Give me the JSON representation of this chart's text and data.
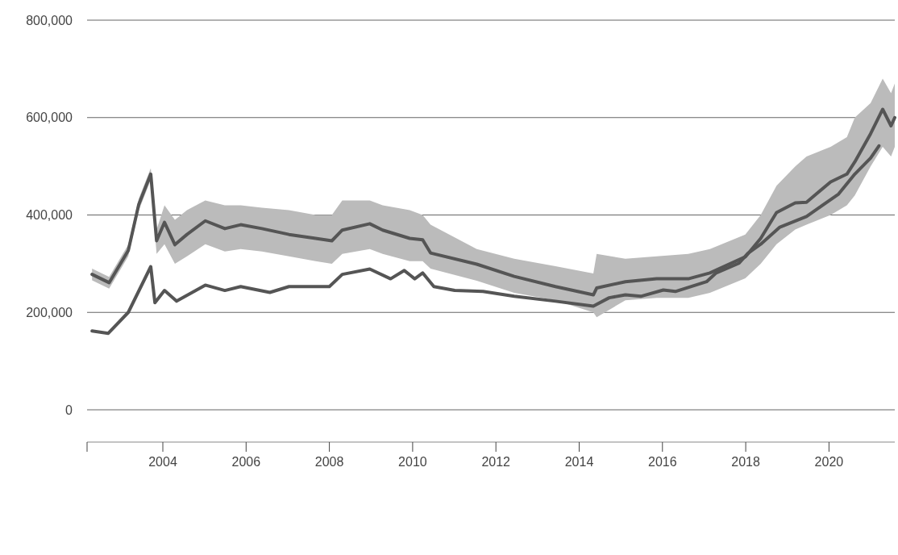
{
  "chart_data": {
    "type": "line",
    "xlim": [
      2002.18,
      2021.58
    ],
    "ylim": [
      0,
      800000
    ],
    "xticks": [
      2004,
      2006,
      2008,
      2010,
      2012,
      2014,
      2016,
      2018,
      2020
    ],
    "yticks": [
      {
        "value": 0,
        "label": "0"
      },
      {
        "value": 200000,
        "label": "200,000"
      },
      {
        "value": 400000,
        "label": "400,000"
      },
      {
        "value": 600000,
        "label": "600,000"
      },
      {
        "value": 800000,
        "label": "800,000"
      }
    ],
    "grid": "y",
    "line_style": "solid",
    "marker": "none",
    "tick_labels": "xy",
    "series": [
      {
        "color": "#555555",
        "x": [
          2002.3,
          2002.71,
          2003.17,
          2003.42,
          2003.71,
          2003.85,
          2004.04,
          2004.29,
          2004.58,
          2005.02,
          2005.49,
          2005.87,
          2006.38,
          2007.03,
          2007.67,
          2008.06,
          2008.31,
          2008.97,
          2009.28,
          2009.93,
          2010.24,
          2010.43,
          2011.54,
          2012.44,
          2013.43,
          2014.34,
          2014.42,
          2015.11,
          2015.86,
          2016.62,
          2017.14,
          2017.99,
          2018.36,
          2018.74,
          2019.19,
          2019.46,
          2020.04,
          2020.43,
          2020.62,
          2021.0,
          2021.29,
          2021.49,
          2021.58
        ],
        "values": [
          278000,
          261000,
          327000,
          421000,
          484000,
          347000,
          385000,
          339000,
          360000,
          388000,
          372000,
          380000,
          372000,
          360000,
          352000,
          347000,
          369000,
          382000,
          369000,
          352000,
          349000,
          322000,
          299000,
          274000,
          253000,
          236000,
          250000,
          263000,
          269000,
          269000,
          281000,
          314000,
          352000,
          405000,
          425000,
          426000,
          468000,
          484000,
          509000,
          567000,
          617000,
          583000,
          600000
        ],
        "lower": [
          266000,
          249000,
          315000,
          409000,
          472000,
          320000,
          340000,
          300000,
          315000,
          340000,
          325000,
          330000,
          325000,
          315000,
          305000,
          300000,
          320000,
          330000,
          320000,
          305000,
          305000,
          290000,
          265000,
          240000,
          225000,
          200000,
          190000,
          225000,
          230000,
          230000,
          240000,
          270000,
          300000,
          340000,
          370000,
          380000,
          400000,
          420000,
          440000,
          500000,
          540000,
          520000,
          540000
        ],
        "upper": [
          290000,
          273000,
          339000,
          433000,
          496000,
          370000,
          420000,
          390000,
          410000,
          430000,
          420000,
          420000,
          415000,
          410000,
          400000,
          400000,
          430000,
          430000,
          420000,
          410000,
          400000,
          380000,
          330000,
          310000,
          295000,
          280000,
          320000,
          310000,
          315000,
          320000,
          330000,
          360000,
          400000,
          460000,
          500000,
          520000,
          540000,
          560000,
          600000,
          630000,
          680000,
          650000,
          670000
        ]
      },
      {
        "color": "#555555",
        "x": [
          2002.3,
          2002.69,
          2003.17,
          2003.71,
          2003.81,
          2004.04,
          2004.33,
          2005.02,
          2005.49,
          2005.87,
          2006.57,
          2007.03,
          2008.0,
          2008.31,
          2008.97,
          2009.47,
          2009.8,
          2010.05,
          2010.24,
          2010.51,
          2011.01,
          2011.69,
          2012.44,
          2013.43,
          2014.34,
          2014.72,
          2015.11,
          2015.48,
          2016.02,
          2016.31,
          2017.06,
          2017.29,
          2017.84,
          2018.05,
          2018.36,
          2018.82,
          2019.46,
          2020.23,
          2020.62,
          2021.0,
          2021.2
        ],
        "values": [
          162000,
          157000,
          200000,
          294000,
          220000,
          245000,
          223000,
          256000,
          245000,
          253000,
          241000,
          253000,
          253000,
          278000,
          289000,
          269000,
          286000,
          269000,
          281000,
          253000,
          245000,
          243000,
          233000,
          223000,
          213000,
          230000,
          236000,
          233000,
          246000,
          243000,
          263000,
          281000,
          301000,
          321000,
          340000,
          375000,
          397000,
          443000,
          484000,
          517000,
          542000
        ]
      }
    ]
  }
}
